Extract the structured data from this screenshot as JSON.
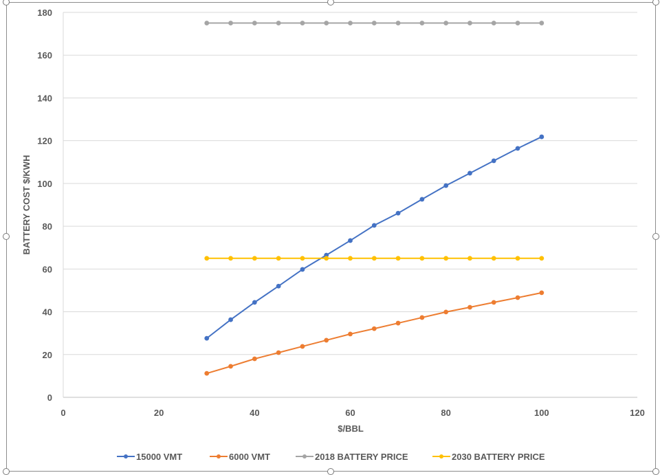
{
  "chart_data": {
    "type": "line",
    "title": "",
    "xlabel": "$/BBL",
    "ylabel": "BATTERY COST $/KWH",
    "xlim": [
      0,
      120
    ],
    "ylim": [
      0,
      180
    ],
    "x_ticks": [
      0,
      20,
      40,
      60,
      80,
      100,
      120
    ],
    "y_ticks": [
      0,
      20,
      40,
      60,
      80,
      100,
      120,
      140,
      160,
      180
    ],
    "grid": "horizontal",
    "legend_position": "bottom",
    "x": [
      30,
      35,
      40,
      45,
      50,
      55,
      60,
      65,
      70,
      75,
      80,
      85,
      90,
      95,
      100
    ],
    "series": [
      {
        "name": "15000 VMT",
        "color": "#4472C4",
        "values": [
          27.6,
          36.3,
          44.4,
          52.0,
          59.8,
          66.5,
          73.3,
          80.4,
          86.1,
          92.6,
          99.0,
          104.8,
          110.6,
          116.4,
          121.8
        ]
      },
      {
        "name": "6000 VMT",
        "color": "#ED7D31",
        "values": [
          11.2,
          14.5,
          18.0,
          20.9,
          23.8,
          26.7,
          29.6,
          32.1,
          34.7,
          37.3,
          39.9,
          42.1,
          44.4,
          46.6,
          48.9
        ]
      },
      {
        "name": "2018 BATTERY PRICE",
        "color": "#A5A5A5",
        "values": [
          175,
          175,
          175,
          175,
          175,
          175,
          175,
          175,
          175,
          175,
          175,
          175,
          175,
          175,
          175
        ]
      },
      {
        "name": "2030 BATTERY PRICE",
        "color": "#FFC000",
        "values": [
          65,
          65,
          65,
          65,
          65,
          65,
          65,
          65,
          65,
          65,
          65,
          65,
          65,
          65,
          65
        ]
      }
    ]
  },
  "legend": {
    "items": [
      "15000 VMT",
      "6000 VMT",
      "2018 BATTERY PRICE",
      "2030 BATTERY PRICE"
    ]
  }
}
